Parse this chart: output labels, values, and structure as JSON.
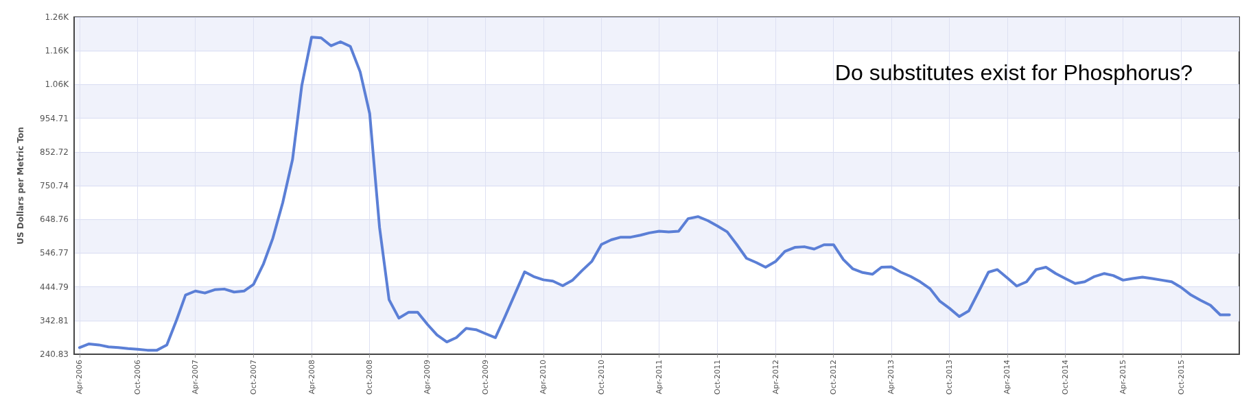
{
  "chart_data": {
    "type": "line",
    "ylabel": "US Dollars per Metric Ton",
    "annotations": [
      "Do substitutes exist for Phosphorus?"
    ],
    "x": [
      "2006-04",
      "2006-05",
      "2006-06",
      "2006-07",
      "2006-08",
      "2006-09",
      "2006-10",
      "2006-11",
      "2006-12",
      "2007-01",
      "2007-02",
      "2007-03",
      "2007-04",
      "2007-05",
      "2007-06",
      "2007-07",
      "2007-08",
      "2007-09",
      "2007-10",
      "2007-11",
      "2007-12",
      "2008-01",
      "2008-02",
      "2008-03",
      "2008-04",
      "2008-05",
      "2008-06",
      "2008-07",
      "2008-08",
      "2008-09",
      "2008-10",
      "2008-11",
      "2008-12",
      "2009-01",
      "2009-02",
      "2009-03",
      "2009-04",
      "2009-05",
      "2009-06",
      "2009-07",
      "2009-08",
      "2009-09",
      "2009-10",
      "2009-11",
      "2009-12",
      "2010-01",
      "2010-02",
      "2010-03",
      "2010-04",
      "2010-05",
      "2010-06",
      "2010-07",
      "2010-08",
      "2010-09",
      "2010-10",
      "2010-11",
      "2010-12",
      "2011-01",
      "2011-02",
      "2011-03",
      "2011-04",
      "2011-05",
      "2011-06",
      "2011-07",
      "2011-08",
      "2011-09",
      "2011-10",
      "2011-11",
      "2011-12",
      "2012-01",
      "2012-02",
      "2012-03",
      "2012-04",
      "2012-05",
      "2012-06",
      "2012-07",
      "2012-08",
      "2012-09",
      "2012-10",
      "2012-11",
      "2012-12",
      "2013-01",
      "2013-02",
      "2013-03",
      "2013-04",
      "2013-05",
      "2013-06",
      "2013-07",
      "2013-08",
      "2013-09",
      "2013-10",
      "2013-11",
      "2013-12",
      "2014-01",
      "2014-02",
      "2014-03",
      "2014-04",
      "2014-05",
      "2014-06",
      "2014-07",
      "2014-08",
      "2014-09",
      "2014-10",
      "2014-11",
      "2014-12",
      "2015-01",
      "2015-02",
      "2015-03",
      "2015-04",
      "2015-05",
      "2015-06",
      "2015-07",
      "2015-08",
      "2015-09",
      "2015-10",
      "2015-11",
      "2015-12",
      "2016-01",
      "2016-02",
      "2016-03"
    ],
    "series": [
      {
        "color": "#5b7fd6",
        "values": [
          261,
          272,
          269,
          263,
          261,
          258,
          256,
          253,
          253,
          269,
          345,
          420,
          432,
          426,
          436,
          438,
          429,
          432,
          452,
          513,
          592,
          699,
          830,
          1053,
          1200,
          1198,
          1174,
          1186,
          1172,
          1095,
          969,
          625,
          406,
          350,
          368,
          368,
          331,
          299,
          278,
          291,
          319,
          315,
          303,
          291,
          354,
          422,
          490,
          476,
          466,
          462,
          448,
          464,
          494,
          522,
          573,
          587,
          595,
          595,
          601,
          608,
          613,
          611,
          613,
          651,
          657,
          645,
          629,
          611,
          573,
          531,
          518,
          504,
          521,
          552,
          564,
          566,
          559,
          572,
          572,
          527,
          499,
          488,
          483,
          504,
          505,
          489,
          476,
          460,
          439,
          401,
          380,
          355,
          372,
          430,
          489,
          497,
          472,
          447,
          460,
          497,
          504,
          485,
          470,
          455,
          460,
          476,
          485,
          479,
          465,
          470,
          474,
          470,
          465,
          460,
          443,
          420,
          404,
          389,
          360,
          360
        ]
      }
    ],
    "xlim": [
      "2006-03-15",
      "2016-04-01"
    ],
    "xticks": [
      {
        "value": "2006-04",
        "label": "Apr-2006"
      },
      {
        "value": "2006-10",
        "label": "Oct-2006"
      },
      {
        "value": "2007-04",
        "label": "Apr-2007"
      },
      {
        "value": "2007-10",
        "label": "Oct-2007"
      },
      {
        "value": "2008-04",
        "label": "Apr-2008"
      },
      {
        "value": "2008-10",
        "label": "Oct-2008"
      },
      {
        "value": "2009-04",
        "label": "Apr-2009"
      },
      {
        "value": "2009-10",
        "label": "Oct-2009"
      },
      {
        "value": "2010-04",
        "label": "Apr-2010"
      },
      {
        "value": "2010-10",
        "label": "Oct-2010"
      },
      {
        "value": "2011-04",
        "label": "Apr-2011"
      },
      {
        "value": "2011-10",
        "label": "Oct-2011"
      },
      {
        "value": "2012-04",
        "label": "Apr-2012"
      },
      {
        "value": "2012-10",
        "label": "Oct-2012"
      },
      {
        "value": "2013-04",
        "label": "Apr-2013"
      },
      {
        "value": "2013-10",
        "label": "Oct-2013"
      },
      {
        "value": "2014-04",
        "label": "Apr-2014"
      },
      {
        "value": "2014-10",
        "label": "Oct-2014"
      },
      {
        "value": "2015-04",
        "label": "Apr-2015"
      },
      {
        "value": "2015-10",
        "label": "Oct-2015"
      }
    ],
    "ylim": [
      240.83,
      1260.62
    ],
    "yticks": [
      240.83,
      342.81,
      444.79,
      546.77,
      648.76,
      750.74,
      852.72,
      954.71,
      {
        "value": 1056.66,
        "label": "1.06K"
      },
      {
        "value": 1158.64,
        "label": "1.16K"
      },
      {
        "value": 1260.62,
        "label": "1.26K"
      }
    ],
    "grid": true,
    "marker": "none",
    "line_style": "solid"
  }
}
